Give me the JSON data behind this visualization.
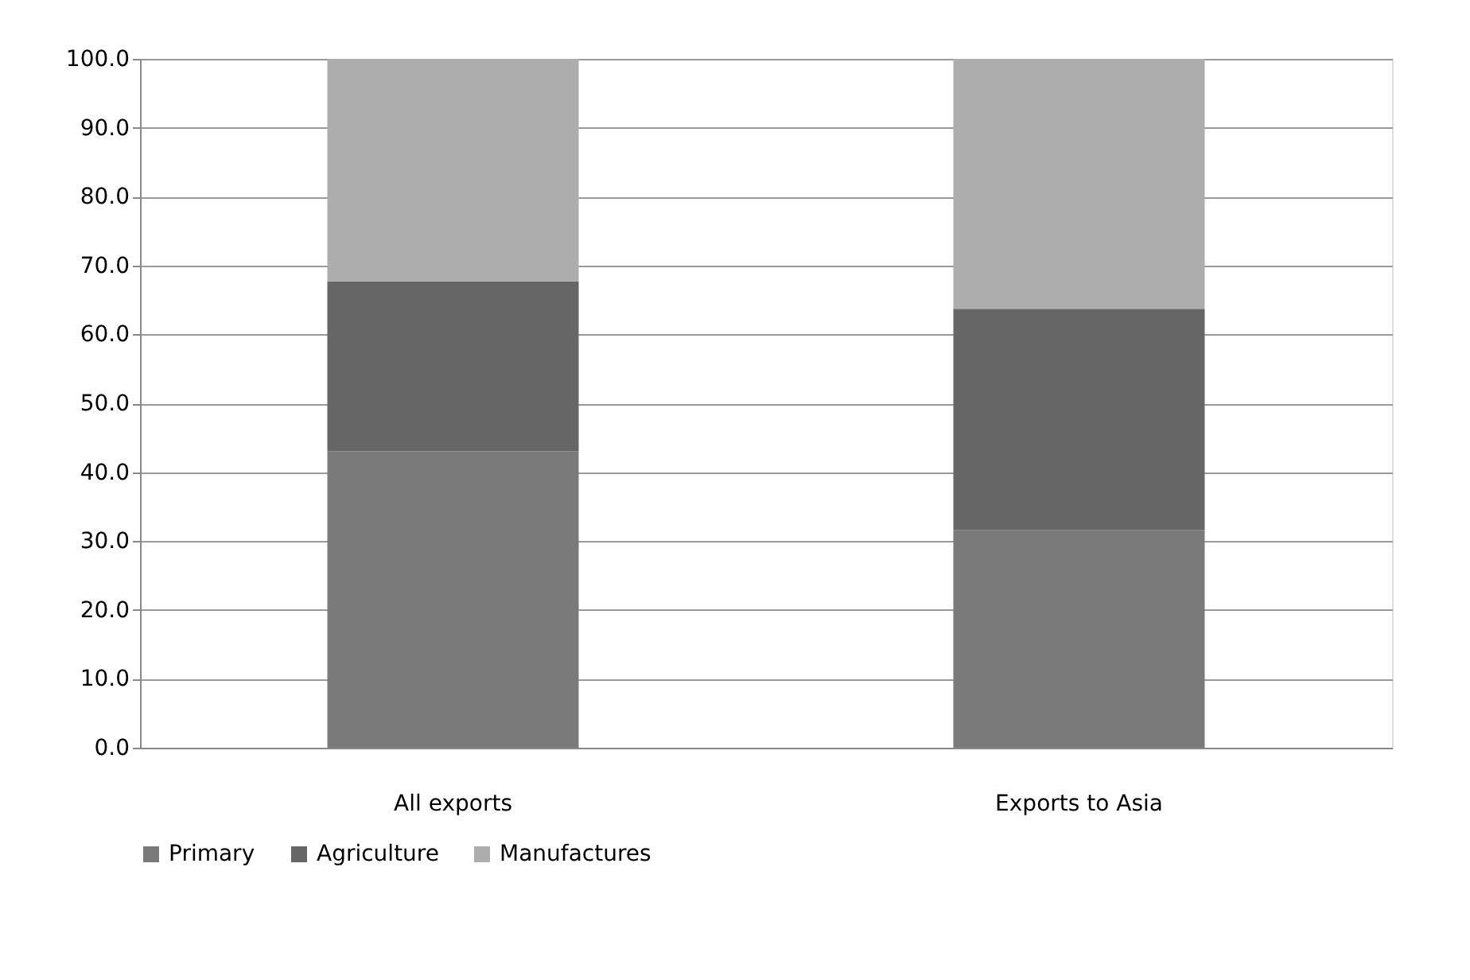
{
  "chart_data": {
    "type": "bar",
    "stacked": true,
    "categories": [
      "All exports",
      "Exports to Asia"
    ],
    "series": [
      {
        "name": "Primary",
        "color": "#7a7a7a",
        "values": [
          43.0,
          31.6
        ]
      },
      {
        "name": "Agriculture",
        "color": "#666666",
        "values": [
          24.7,
          32.1
        ]
      },
      {
        "name": "Manufactures",
        "color": "#adadad",
        "values": [
          32.3,
          36.3
        ]
      }
    ],
    "ylim": [
      0,
      100
    ],
    "yticks": [
      {
        "value": 0,
        "label": "0.0"
      },
      {
        "value": 10,
        "label": "10.0"
      },
      {
        "value": 20,
        "label": "20.0"
      },
      {
        "value": 30,
        "label": "30.0"
      },
      {
        "value": 40,
        "label": "40.0"
      },
      {
        "value": 50,
        "label": "50.0"
      },
      {
        "value": 60,
        "label": "60.0"
      },
      {
        "value": 70,
        "label": "70.0"
      },
      {
        "value": 80,
        "label": "80.0"
      },
      {
        "value": 90,
        "label": "90.0"
      },
      {
        "value": 100,
        "label": "100.0"
      }
    ],
    "grid": "y",
    "legend": "bottom"
  }
}
